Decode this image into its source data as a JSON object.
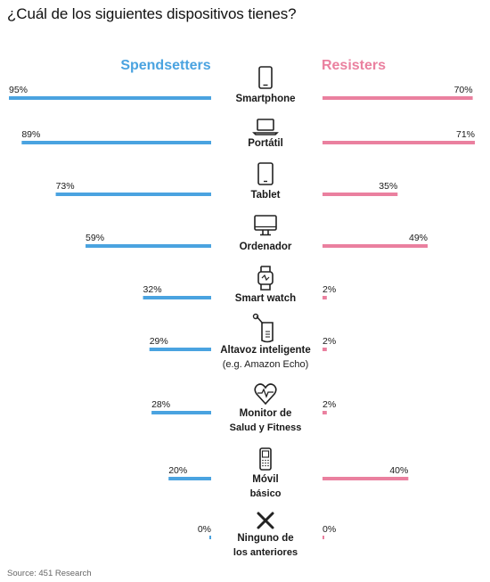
{
  "title": "¿Cuál de los siguientes dispositivos tienes?",
  "source": "Source: 451 Research",
  "chart_data": {
    "type": "bar",
    "title": "¿Cuál de los siguientes dispositivos tienes?",
    "orientation": "horizontal-butterfly",
    "unit": "%",
    "xlim": [
      0,
      100
    ],
    "categories": [
      {
        "lines": [
          "Smartphone"
        ],
        "icon": "smartphone-icon"
      },
      {
        "lines": [
          "Portátil"
        ],
        "icon": "laptop-icon"
      },
      {
        "lines": [
          "Tablet"
        ],
        "icon": "tablet-icon"
      },
      {
        "lines": [
          "Ordenador"
        ],
        "icon": "monitor-icon"
      },
      {
        "lines": [
          "Smart watch"
        ],
        "icon": "smartwatch-icon"
      },
      {
        "lines": [
          "Altavoz inteligente",
          "(e.g. Amazon Echo)"
        ],
        "icon": "smart-speaker-icon"
      },
      {
        "lines": [
          "Monitor de",
          "Salud y Fitness"
        ],
        "icon": "heart-pulse-icon"
      },
      {
        "lines": [
          "Móvil",
          "básico"
        ],
        "icon": "basic-phone-icon"
      },
      {
        "lines": [
          "Ninguno de",
          "los anteriores"
        ],
        "icon": "cross-icon"
      }
    ],
    "series": [
      {
        "name": "Spendsetters",
        "color": "#4aa3e0",
        "side": "left",
        "values": [
          95,
          89,
          73,
          59,
          32,
          29,
          28,
          20,
          0
        ]
      },
      {
        "name": "Resisters",
        "color": "#ea809f",
        "side": "right",
        "values": [
          70,
          71,
          35,
          49,
          2,
          2,
          2,
          40,
          0
        ]
      }
    ]
  }
}
